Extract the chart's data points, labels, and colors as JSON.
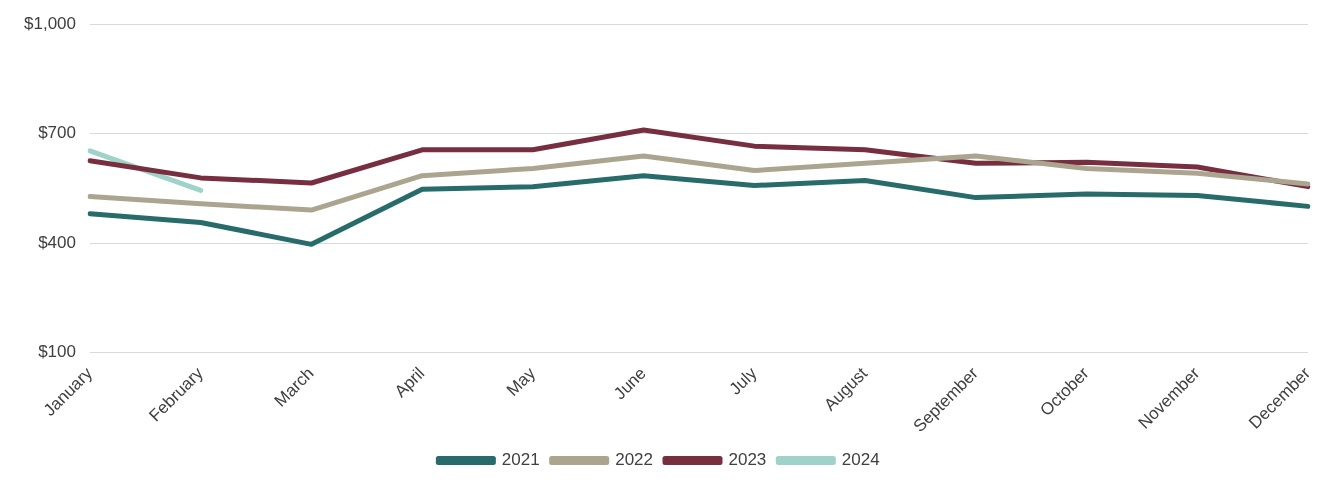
{
  "chart_data": {
    "type": "line",
    "categories": [
      "January",
      "February",
      "March",
      "April",
      "May",
      "June",
      "July",
      "August",
      "September",
      "October",
      "November",
      "December"
    ],
    "series": [
      {
        "name": "2021",
        "color": "#276b6b",
        "values": [
          481,
          457,
          397,
          548,
          555,
          585,
          558,
          572,
          525,
          535,
          531,
          501
        ]
      },
      {
        "name": "2022",
        "color": "#aba590",
        "values": [
          528,
          508,
          491,
          585,
          605,
          639,
          599,
          619,
          639,
          605,
          592,
          562
        ]
      },
      {
        "name": "2023",
        "color": "#772f3f",
        "values": [
          626,
          579,
          565,
          656,
          656,
          710,
          666,
          656,
          619,
          622,
          609,
          555
        ]
      },
      {
        "name": "2024",
        "color": "#9fd3c9",
        "values": [
          653,
          545,
          null,
          null,
          null,
          null,
          null,
          null,
          null,
          null,
          null,
          null
        ]
      }
    ],
    "ylim": [
      100,
      1000
    ],
    "yticks": [
      {
        "value": 100,
        "label": "$100"
      },
      {
        "value": 400,
        "label": "$400"
      },
      {
        "value": 700,
        "label": "$700"
      },
      {
        "value": 1000,
        "label": "$1,000"
      }
    ],
    "grid": "y",
    "legend": "bottom",
    "marker": "none",
    "line_style": "solid"
  }
}
